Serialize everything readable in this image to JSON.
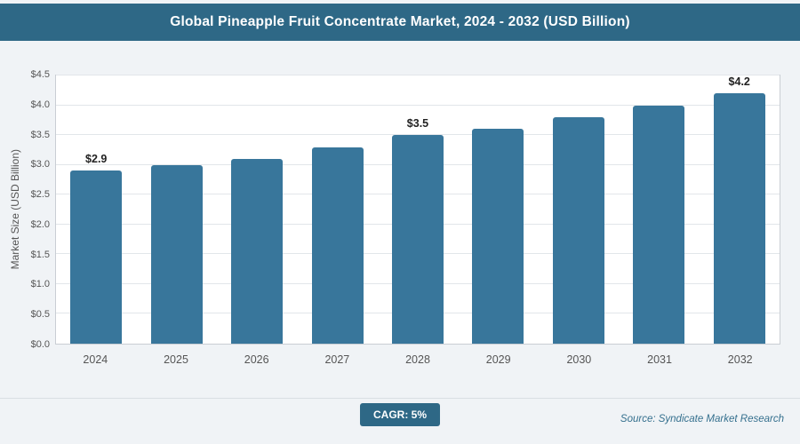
{
  "header": {
    "title": "Global Pineapple Fruit Concentrate Market, 2024 - 2032 (USD Billion)"
  },
  "footer": {
    "cagr_label": "CAGR: 5%",
    "source": "Source: Syndicate Market Research"
  },
  "colors": {
    "header_bg": "#2e6886",
    "bar": "#38769b",
    "badge_bg": "#2e6886",
    "source_text": "#35708e",
    "plot_bg": "#ffffff",
    "page_bg": "#f0f3f6"
  },
  "chart_data": {
    "type": "bar",
    "title": "Global Pineapple Fruit Concentrate Market, 2024 - 2032 (USD Billion)",
    "xlabel": "",
    "ylabel": "Market Size (USD Billion)",
    "categories": [
      "2024",
      "2025",
      "2026",
      "2027",
      "2028",
      "2029",
      "2030",
      "2031",
      "2032"
    ],
    "values": [
      2.9,
      3.0,
      3.1,
      3.3,
      3.5,
      3.6,
      3.8,
      4.0,
      4.2
    ],
    "value_labels": [
      "$2.9",
      "",
      "",
      "",
      "$3.5",
      "",
      "",
      "",
      "$4.2"
    ],
    "ytick_labels": [
      "$0.0",
      "$0.5",
      "$1.0",
      "$1.5",
      "$2.0",
      "$2.5",
      "$3.0",
      "$3.5",
      "$4.0",
      "$4.5"
    ],
    "ylim": [
      0,
      4.5
    ],
    "grid": true,
    "legend": false,
    "bar_color": "#38769b",
    "annotations": [
      "CAGR: 5%"
    ]
  }
}
